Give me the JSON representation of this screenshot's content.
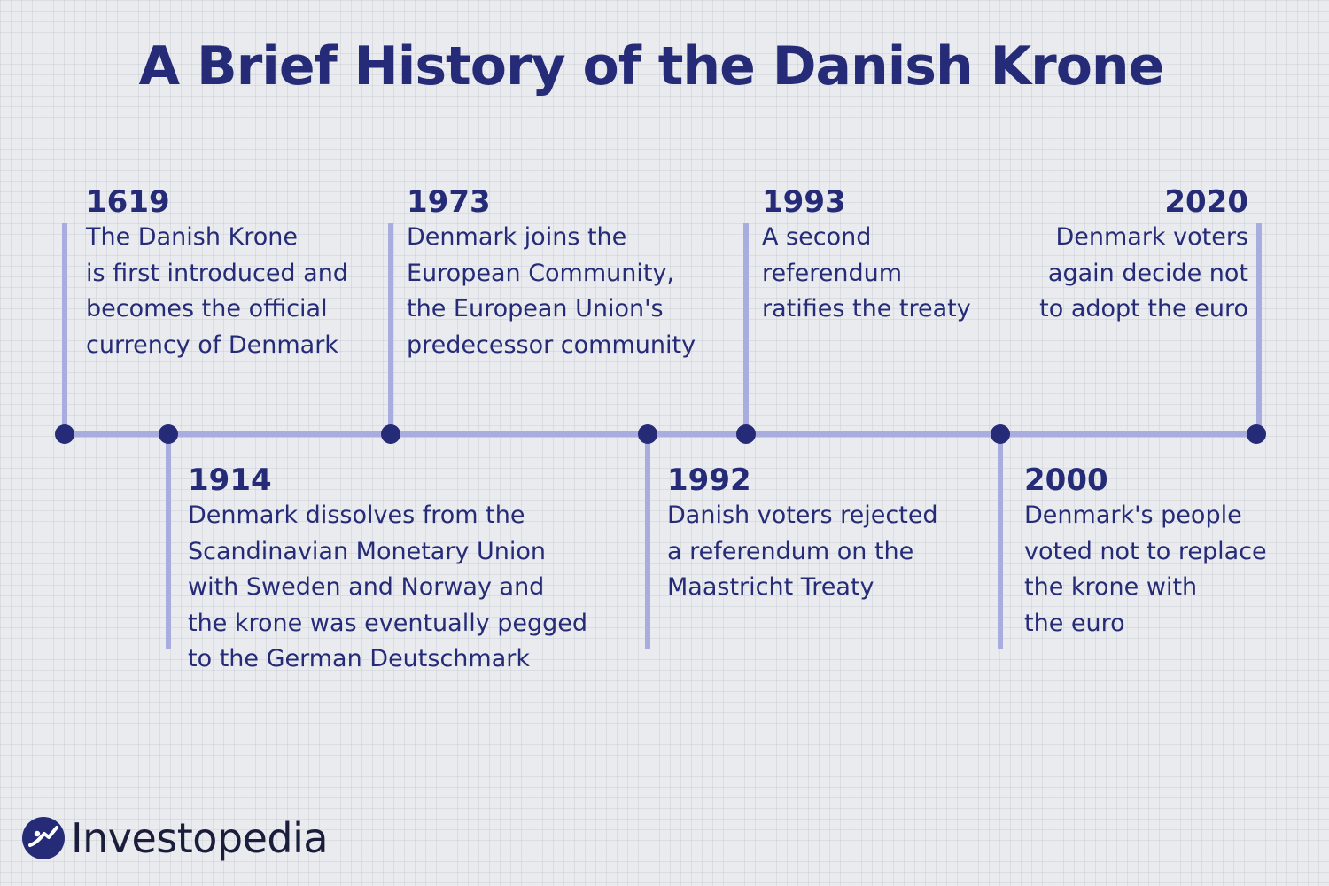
{
  "title": "A Brief History of the Danish Krone",
  "colors": {
    "text": "#262b78",
    "line": "#a8acdf",
    "dot": "#262b78",
    "background": "#e9ebee"
  },
  "events": [
    {
      "year": "1619",
      "description": "The Danish Krone\nis first introduced and\nbecomes the official\ncurrency of Denmark",
      "side": "above"
    },
    {
      "year": "1914",
      "description": "Denmark dissolves from the\nScandinavian Monetary Union\nwith Sweden and Norway and\nthe krone was eventually pegged\nto the German Deutschmark",
      "side": "below"
    },
    {
      "year": "1973",
      "description": "Denmark joins the\nEuropean Community,\nthe European Union's\npredecessor community",
      "side": "above"
    },
    {
      "year": "1992",
      "description": "Danish voters rejected\na referendum on the\nMaastricht Treaty",
      "side": "below"
    },
    {
      "year": "1993",
      "description": "A second\nreferendum\nratifies the treaty",
      "side": "above"
    },
    {
      "year": "2000",
      "description": "Denmark's people\nvoted not to replace\nthe krone with\nthe euro",
      "side": "below"
    },
    {
      "year": "2020",
      "description": "Denmark voters\nagain decide not\nto adopt the euro",
      "side": "above"
    }
  ],
  "logo": {
    "text": "Investopedia",
    "icon": "investopedia-logo-icon"
  }
}
